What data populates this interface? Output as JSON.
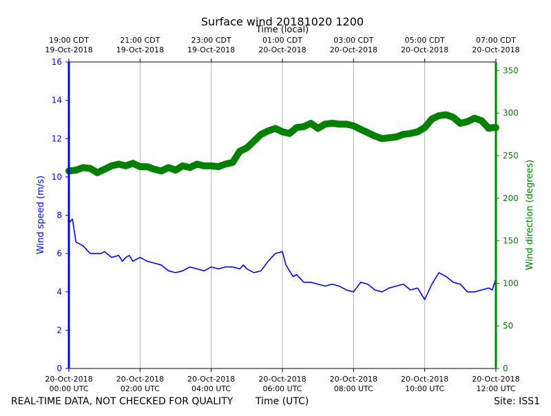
{
  "chart_data": {
    "type": "line",
    "title": "Surface wind 20181020 1200",
    "top_axis_label": "Time (local)",
    "xlabel": "Time (UTC)",
    "ylabel_left": "Wind speed (m/s)",
    "ylabel_right": "Wind direction (degrees)",
    "xlim_hours_utc": [
      0,
      12
    ],
    "ylim_left": [
      0,
      16
    ],
    "ylim_right": [
      0,
      360
    ],
    "left_ticks": [
      0,
      2,
      4,
      6,
      8,
      10,
      12,
      14,
      16
    ],
    "right_ticks": [
      0,
      50,
      100,
      150,
      200,
      250,
      300,
      350
    ],
    "grid": "vertical",
    "bottom_ticks": [
      {
        "hour": 0,
        "line1": "20-Oct-2018",
        "line2": "00:00 UTC"
      },
      {
        "hour": 2,
        "line1": "20-Oct-2018",
        "line2": "02:00 UTC"
      },
      {
        "hour": 4,
        "line1": "20-Oct-2018",
        "line2": "04:00 UTC"
      },
      {
        "hour": 6,
        "line1": "20-Oct-2018",
        "line2": "06:00 UTC"
      },
      {
        "hour": 8,
        "line1": "20-Oct-2018",
        "line2": "08:00 UTC"
      },
      {
        "hour": 10,
        "line1": "20-Oct-2018",
        "line2": "10:00 UTC"
      },
      {
        "hour": 12,
        "line1": "20-Oct-2018",
        "line2": "12:00 UTC"
      }
    ],
    "top_ticks": [
      {
        "hour": 0,
        "line1": "19:00 CDT",
        "line2": "19-Oct-2018"
      },
      {
        "hour": 2,
        "line1": "21:00 CDT",
        "line2": "19-Oct-2018"
      },
      {
        "hour": 4,
        "line1": "23:00 CDT",
        "line2": "19-Oct-2018"
      },
      {
        "hour": 6,
        "line1": "01:00 CDT",
        "line2": "20-Oct-2018"
      },
      {
        "hour": 8,
        "line1": "03:00 CDT",
        "line2": "20-Oct-2018"
      },
      {
        "hour": 10,
        "line1": "05:00 CDT",
        "line2": "20-Oct-2018"
      },
      {
        "hour": 12,
        "line1": "07:00 CDT",
        "line2": "20-Oct-2018"
      }
    ],
    "series": [
      {
        "name": "Wind speed (m/s)",
        "axis": "left",
        "color": "#0000ff",
        "hours": [
          0,
          0.1,
          0.2,
          0.3,
          0.4,
          0.5,
          0.6,
          0.75,
          0.9,
          1.0,
          1.2,
          1.4,
          1.5,
          1.6,
          1.7,
          1.8,
          2.0,
          2.2,
          2.4,
          2.6,
          2.8,
          3.0,
          3.2,
          3.4,
          3.6,
          3.8,
          4.0,
          4.2,
          4.4,
          4.6,
          4.8,
          4.9,
          5.0,
          5.2,
          5.4,
          5.6,
          5.8,
          6.0,
          6.1,
          6.2,
          6.3,
          6.4,
          6.6,
          6.8,
          7.0,
          7.2,
          7.4,
          7.6,
          7.8,
          8.0,
          8.2,
          8.4,
          8.6,
          8.8,
          9.0,
          9.2,
          9.4,
          9.6,
          9.8,
          10.0,
          10.1,
          10.2,
          10.4,
          10.6,
          10.8,
          11.0,
          11.2,
          11.4,
          11.6,
          11.8,
          11.9,
          12.0
        ],
        "values": [
          7.6,
          7.8,
          6.6,
          6.5,
          6.4,
          6.2,
          6.0,
          6.0,
          6.0,
          6.1,
          5.8,
          5.9,
          5.6,
          5.8,
          5.9,
          5.6,
          5.8,
          5.6,
          5.5,
          5.4,
          5.1,
          5.0,
          5.1,
          5.3,
          5.2,
          5.1,
          5.3,
          5.2,
          5.3,
          5.3,
          5.2,
          5.4,
          5.2,
          5.0,
          5.1,
          5.6,
          6.0,
          6.1,
          5.4,
          5.1,
          4.8,
          4.9,
          4.5,
          4.5,
          4.4,
          4.3,
          4.4,
          4.3,
          4.1,
          4.0,
          4.5,
          4.4,
          4.1,
          4.0,
          4.2,
          4.3,
          4.4,
          4.1,
          4.2,
          3.6,
          4.0,
          4.4,
          5.0,
          4.8,
          4.5,
          4.4,
          4.0,
          4.0,
          4.1,
          4.2,
          4.1,
          4.7
        ]
      },
      {
        "name": "Wind direction (degrees)",
        "axis": "right",
        "color": "#008000",
        "hours": [
          0,
          0.2,
          0.4,
          0.6,
          0.8,
          1.0,
          1.2,
          1.4,
          1.6,
          1.8,
          2.0,
          2.2,
          2.4,
          2.6,
          2.8,
          3.0,
          3.2,
          3.4,
          3.6,
          3.8,
          4.0,
          4.2,
          4.4,
          4.6,
          4.8,
          5.0,
          5.2,
          5.4,
          5.6,
          5.8,
          6.0,
          6.2,
          6.4,
          6.6,
          6.8,
          7.0,
          7.2,
          7.4,
          7.6,
          7.8,
          8.0,
          8.2,
          8.4,
          8.6,
          8.8,
          9.0,
          9.2,
          9.4,
          9.6,
          9.8,
          10.0,
          10.2,
          10.4,
          10.6,
          10.8,
          11.0,
          11.2,
          11.4,
          11.6,
          11.8,
          11.9,
          12.0
        ],
        "values": [
          232,
          233,
          236,
          235,
          230,
          234,
          238,
          240,
          238,
          241,
          237,
          237,
          234,
          232,
          236,
          233,
          238,
          236,
          240,
          238,
          238,
          237,
          240,
          242,
          255,
          259,
          267,
          275,
          279,
          282,
          278,
          276,
          283,
          284,
          288,
          282,
          287,
          288,
          287,
          287,
          285,
          281,
          277,
          273,
          270,
          271,
          272,
          275,
          276,
          278,
          283,
          293,
          297,
          298,
          295,
          288,
          290,
          294,
          291,
          282,
          283,
          283
        ]
      }
    ]
  },
  "footer": {
    "left_text": "REAL-TIME DATA, NOT CHECKED FOR QUALITY",
    "center_text": "Time (UTC)",
    "right_text": "Site: ISS1"
  },
  "colors": {
    "speed": "#0000ff",
    "direction": "#008000",
    "grid": "#b0b0b0",
    "axis": "#000000"
  }
}
